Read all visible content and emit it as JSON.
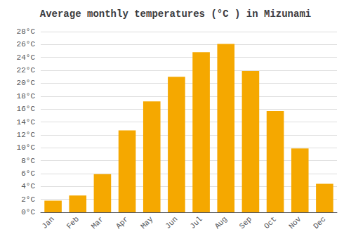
{
  "chart_data": {
    "type": "bar",
    "title": "Average monthly temperatures (°C ) in Mizunami",
    "categories": [
      "Jan",
      "Feb",
      "Mar",
      "Apr",
      "May",
      "Jun",
      "Jul",
      "Aug",
      "Sep",
      "Oct",
      "Nov",
      "Dec"
    ],
    "values": [
      1.8,
      2.6,
      5.9,
      12.7,
      17.2,
      21.0,
      24.8,
      26.1,
      21.9,
      15.7,
      9.9,
      4.4
    ],
    "color": "#F5A800",
    "ylim": [
      0,
      28
    ],
    "yticks": [
      {
        "value": 0,
        "label": "0°C"
      },
      {
        "value": 2,
        "label": "2°C"
      },
      {
        "value": 4,
        "label": "4°C"
      },
      {
        "value": 6,
        "label": "6°C"
      },
      {
        "value": 8,
        "label": "8°C"
      },
      {
        "value": 10,
        "label": "10°C"
      },
      {
        "value": 12,
        "label": "12°C"
      },
      {
        "value": 14,
        "label": "14°C"
      },
      {
        "value": 16,
        "label": "16°C"
      },
      {
        "value": 18,
        "label": "18°C"
      },
      {
        "value": 20,
        "label": "20°C"
      },
      {
        "value": 22,
        "label": "22°C"
      },
      {
        "value": 24,
        "label": "24°C"
      },
      {
        "value": 26,
        "label": "26°C"
      },
      {
        "value": 28,
        "label": "28°C"
      }
    ],
    "grid": true
  }
}
